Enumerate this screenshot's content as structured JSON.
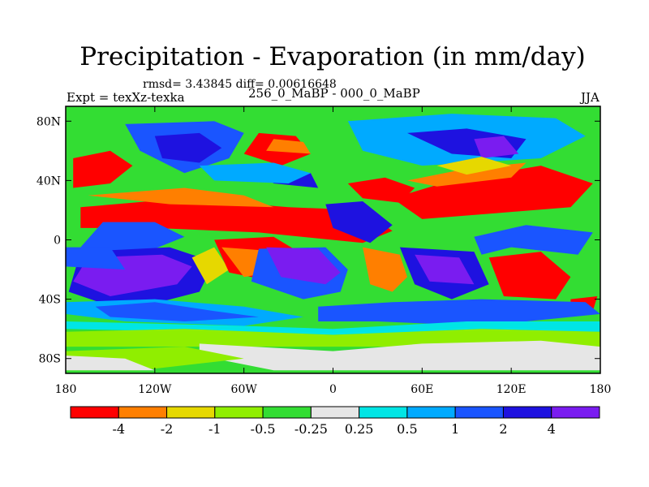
{
  "chart_data": {
    "type": "heatmap",
    "title": "Precipitation - Evaporation (in mm/day)",
    "subtitle": "rmsd= 3.43845 diff= 0.00616648",
    "left_label": "Expt = texXz-texka",
    "center_label": "256_0_MaBP - 000_0_MaBP",
    "right_label": "JJA",
    "x_ticks": [
      "180",
      "120W",
      "60W",
      "0",
      "60E",
      "120E",
      "180"
    ],
    "x_tick_values": [
      -180,
      -120,
      -60,
      0,
      60,
      120,
      180
    ],
    "y_ticks": [
      "80N",
      "40N",
      "0",
      "40S",
      "80S"
    ],
    "y_tick_values": [
      80,
      40,
      0,
      -40,
      -80
    ],
    "xlim": [
      -180,
      180
    ],
    "ylim": [
      -90,
      90
    ],
    "colorbar": {
      "boundaries": [
        "-4",
        "-2",
        "-1",
        "-0.5",
        "-0.25",
        "0.25",
        "0.5",
        "1",
        "2",
        "4"
      ],
      "colors": [
        "#ff0000",
        "#ff7f00",
        "#e6d800",
        "#90ee00",
        "#33dd33",
        "#e6e6e6",
        "#00e5e5",
        "#00aaff",
        "#1a55ff",
        "#1e12e0",
        "#7a1cf0"
      ]
    },
    "background_level_color": "#33dd33",
    "regions": [
      {
        "color": "#1a55ff",
        "lon": [
          -140,
          -80,
          -60,
          -70,
          -100,
          -130
        ],
        "lat": [
          78,
          80,
          72,
          55,
          45,
          60
        ]
      },
      {
        "color": "#1e12e0",
        "lon": [
          -120,
          -90,
          -75,
          -90,
          -115
        ],
        "lat": [
          70,
          72,
          62,
          52,
          55
        ]
      },
      {
        "color": "#00aaff",
        "lon": [
          10,
          80,
          150,
          170,
          140,
          60,
          20
        ],
        "lat": [
          80,
          85,
          82,
          70,
          55,
          50,
          60
        ]
      },
      {
        "color": "#1e12e0",
        "lon": [
          50,
          90,
          130,
          120,
          80
        ],
        "lat": [
          72,
          75,
          68,
          55,
          58
        ]
      },
      {
        "color": "#7a1cf0",
        "lon": [
          95,
          115,
          125,
          100
        ],
        "lat": [
          68,
          70,
          58,
          55
        ]
      },
      {
        "color": "#ff0000",
        "lon": [
          -50,
          -25,
          -15,
          -35,
          -60
        ],
        "lat": [
          72,
          70,
          58,
          50,
          58
        ]
      },
      {
        "color": "#ff7f00",
        "lon": [
          -40,
          -20,
          -15,
          -45
        ],
        "lat": [
          68,
          66,
          58,
          60
        ]
      },
      {
        "color": "#ff0000",
        "lon": [
          -175,
          -150,
          -135,
          -150,
          -175
        ],
        "lat": [
          55,
          60,
          50,
          38,
          35
        ]
      },
      {
        "color": "#ff0000",
        "lon": [
          -170,
          -100,
          -30,
          20,
          40,
          20,
          -50,
          -120,
          -170
        ],
        "lat": [
          22,
          28,
          22,
          20,
          6,
          -2,
          5,
          8,
          8
        ]
      },
      {
        "color": "#ff7f00",
        "lon": [
          -165,
          -100,
          -60,
          -40,
          -110
        ],
        "lat": [
          30,
          35,
          30,
          22,
          24
        ]
      },
      {
        "color": "#ff0000",
        "lon": [
          40,
          80,
          140,
          175,
          160,
          110,
          60
        ],
        "lat": [
          28,
          40,
          50,
          38,
          22,
          18,
          14
        ]
      },
      {
        "color": "#ff7f00",
        "lon": [
          50,
          90,
          130,
          120,
          70
        ],
        "lat": [
          40,
          48,
          52,
          42,
          36
        ]
      },
      {
        "color": "#e6d800",
        "lon": [
          70,
          100,
          120,
          90
        ],
        "lat": [
          50,
          56,
          50,
          44
        ]
      },
      {
        "color": "#ff0000",
        "lon": [
          10,
          35,
          55,
          45,
          20
        ],
        "lat": [
          38,
          42,
          35,
          25,
          28
        ]
      },
      {
        "color": "#1e12e0",
        "lon": [
          -5,
          20,
          40,
          25,
          0
        ],
        "lat": [
          24,
          26,
          10,
          -2,
          8
        ]
      },
      {
        "color": "#1e12e0",
        "lon": [
          -50,
          -15,
          -10,
          -40
        ],
        "lat": [
          48,
          45,
          35,
          38
        ]
      },
      {
        "color": "#00aaff",
        "lon": [
          -90,
          -40,
          -15,
          -30,
          -80
        ],
        "lat": [
          50,
          52,
          45,
          38,
          40
        ]
      },
      {
        "color": "#1a55ff",
        "lon": [
          -155,
          -120,
          -100,
          -130,
          -170
        ],
        "lat": [
          12,
          12,
          2,
          -10,
          -5
        ]
      },
      {
        "color": "#1e12e0",
        "lon": [
          -170,
          -110,
          -80,
          -90,
          -140,
          -178
        ],
        "lat": [
          -8,
          -5,
          -15,
          -35,
          -48,
          -35
        ]
      },
      {
        "color": "#7a1cf0",
        "lon": [
          -165,
          -115,
          -95,
          -105,
          -150,
          -175
        ],
        "lat": [
          -12,
          -10,
          -18,
          -30,
          -38,
          -28
        ]
      },
      {
        "color": "#e6d800",
        "lon": [
          -95,
          -80,
          -70,
          -85
        ],
        "lat": [
          -12,
          -5,
          -20,
          -30
        ]
      },
      {
        "color": "#ff0000",
        "lon": [
          -80,
          -40,
          -20,
          -40,
          -70
        ],
        "lat": [
          0,
          2,
          -10,
          -28,
          -22
        ]
      },
      {
        "color": "#ff7f00",
        "lon": [
          -75,
          -35,
          -30,
          -60
        ],
        "lat": [
          -5,
          -8,
          -20,
          -25
        ]
      },
      {
        "color": "#1a55ff",
        "lon": [
          -50,
          -5,
          10,
          5,
          -20,
          -55
        ],
        "lat": [
          -6,
          -5,
          -20,
          -35,
          -40,
          -28
        ]
      },
      {
        "color": "#7a1cf0",
        "lon": [
          -45,
          -10,
          5,
          -5,
          -35
        ],
        "lat": [
          -5,
          -6,
          -22,
          -30,
          -25
        ]
      },
      {
        "color": "#ff7f00",
        "lon": [
          20,
          45,
          50,
          40,
          25
        ],
        "lat": [
          -5,
          -10,
          -25,
          -35,
          -30
        ]
      },
      {
        "color": "#1e12e0",
        "lon": [
          45,
          95,
          105,
          80,
          55
        ],
        "lat": [
          -5,
          -8,
          -30,
          -40,
          -30
        ]
      },
      {
        "color": "#7a1cf0",
        "lon": [
          55,
          85,
          95,
          65
        ],
        "lat": [
          -10,
          -12,
          -30,
          -28
        ]
      },
      {
        "color": "#ff0000",
        "lon": [
          105,
          140,
          160,
          150,
          115
        ],
        "lat": [
          -12,
          -8,
          -25,
          -40,
          -38
        ]
      },
      {
        "color": "#1a55ff",
        "lon": [
          95,
          130,
          175,
          165,
          120,
          100
        ],
        "lat": [
          2,
          10,
          5,
          -10,
          -5,
          -10
        ]
      },
      {
        "color": "#ff0000",
        "lon": [
          160,
          178,
          175,
          160
        ],
        "lat": [
          -40,
          -38,
          -48,
          -50
        ]
      },
      {
        "color": "#00aaff",
        "lon": [
          -180,
          -120,
          -60,
          -20,
          -60,
          -140,
          -180
        ],
        "lat": [
          -42,
          -40,
          -45,
          -52,
          -58,
          -55,
          -50
        ]
      },
      {
        "color": "#1a55ff",
        "lon": [
          -160,
          -120,
          -80,
          -50,
          -100,
          -150
        ],
        "lat": [
          -45,
          -42,
          -48,
          -52,
          -55,
          -52
        ]
      },
      {
        "color": "#1a55ff",
        "lon": [
          -10,
          40,
          100,
          170,
          180,
          100,
          30,
          -10
        ],
        "lat": [
          -45,
          -42,
          -40,
          -42,
          -50,
          -58,
          -55,
          -55
        ]
      },
      {
        "color": "#00e5e5",
        "lon": [
          -180,
          -60,
          0,
          90,
          180,
          180,
          90,
          0,
          -90,
          -180
        ],
        "lat": [
          -55,
          -58,
          -60,
          -55,
          -55,
          -62,
          -62,
          -64,
          -62,
          -60
        ]
      },
      {
        "color": "#90ee00",
        "lon": [
          -180,
          -100,
          0,
          100,
          180,
          180,
          -180
        ],
        "lat": [
          -62,
          -60,
          -64,
          -60,
          -62,
          -72,
          -72
        ]
      },
      {
        "color": "#e6e6e6",
        "lon": [
          -90,
          0,
          60,
          140,
          180,
          180,
          -40,
          -90
        ],
        "lat": [
          -70,
          -75,
          -70,
          -68,
          -72,
          -88,
          -88,
          -78
        ]
      },
      {
        "color": "#90ee00",
        "lon": [
          -180,
          -100,
          -60,
          -130,
          -180
        ],
        "lat": [
          -75,
          -72,
          -80,
          -88,
          -88
        ]
      },
      {
        "color": "#e6e6e6",
        "lon": [
          -180,
          -140,
          -120,
          -180
        ],
        "lat": [
          -78,
          -80,
          -88,
          -88
        ]
      },
      {
        "color": "#1a55ff",
        "lon": [
          -180,
          -150,
          -140,
          -180
        ],
        "lat": [
          -5,
          -5,
          -20,
          -18
        ]
      }
    ]
  }
}
